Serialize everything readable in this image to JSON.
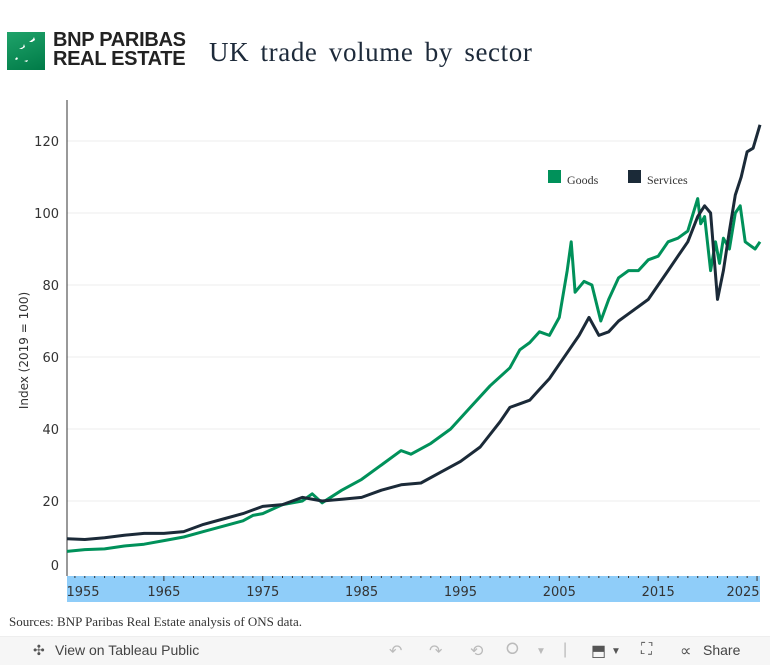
{
  "header": {
    "brand_line1": "BNP PARIBAS",
    "brand_line2": "REAL ESTATE",
    "logo_icon": "bnp-stars-logo",
    "title": "UK trade volume by sector"
  },
  "colors": {
    "goods": "#00915a",
    "services": "#1b2a38",
    "xaxis_band": "#8fcdf9",
    "brand": "#00915a"
  },
  "footer": {
    "sources": "Sources: BNP Paribas Real Estate analysis of ONS data."
  },
  "toolbar": {
    "view_on_tableau": "View on Tableau Public",
    "undo_icon": "undo-icon",
    "redo_icon": "redo-icon",
    "revert_icon": "revert-icon",
    "refresh_icon": "refresh-icon",
    "download_icon": "download-icon",
    "fullscreen_icon": "fullscreen-icon",
    "share_label": "Share"
  },
  "chart_data": {
    "type": "line",
    "title": "UK trade volume by sector",
    "xlabel": "",
    "ylabel": "Index (2019 = 100)",
    "xlim": [
      1955.2,
      2025.3
    ],
    "ylim": [
      0,
      131
    ],
    "yticks": [
      0,
      20,
      40,
      60,
      80,
      100,
      120
    ],
    "xticks": [
      1955,
      1965,
      1975,
      1985,
      1995,
      2005,
      2015,
      2025
    ],
    "grid": true,
    "legend": "top-right",
    "series": [
      {
        "name": "Goods",
        "x": [
          1955.2,
          1957,
          1959,
          1961,
          1963,
          1965,
          1967,
          1969,
          1971,
          1973,
          1974,
          1975,
          1977,
          1979,
          1980,
          1981,
          1983,
          1985,
          1987,
          1989,
          1990,
          1992,
          1994,
          1996,
          1998,
          2000,
          2001,
          2002,
          2003,
          2004,
          2005,
          2005.8,
          2006.2,
          2006.6,
          2007.5,
          2008.3,
          2009.2,
          2010,
          2011,
          2012,
          2013,
          2014,
          2015,
          2016,
          2017,
          2018,
          2019,
          2019.3,
          2019.7,
          2020.3,
          2020.8,
          2021.2,
          2021.6,
          2022.2,
          2022.8,
          2023.3,
          2023.8,
          2024.3,
          2024.8,
          2025.3
        ],
        "values": [
          6,
          6.5,
          6.7,
          7.5,
          8,
          9,
          10,
          11.5,
          13,
          14.5,
          16,
          16.5,
          19,
          20,
          22,
          19.5,
          23,
          26,
          30,
          34,
          33,
          36,
          40,
          46,
          52,
          57,
          62,
          64,
          67,
          66,
          71,
          84,
          92,
          78,
          81,
          80,
          70,
          76,
          82,
          84,
          84,
          87,
          88,
          92,
          93,
          95,
          104,
          97,
          99,
          84,
          92,
          86,
          93,
          90,
          100,
          102,
          92,
          91,
          90,
          92
        ]
      },
      {
        "name": "Services",
        "x": [
          1955.2,
          1957,
          1959,
          1961,
          1963,
          1965,
          1967,
          1969,
          1971,
          1973,
          1975,
          1977,
          1979,
          1981,
          1983,
          1985,
          1987,
          1989,
          1991,
          1993,
          1995,
          1997,
          1999,
          2000,
          2001,
          2002,
          2003,
          2004,
          2005,
          2006,
          2007,
          2008,
          2009,
          2010,
          2011,
          2012,
          2013,
          2014,
          2015,
          2016,
          2017,
          2018,
          2019,
          2019.7,
          2020.3,
          2021,
          2021.6,
          2022.2,
          2022.8,
          2023.4,
          2024,
          2024.6,
          2025.3
        ],
        "values": [
          9.5,
          9.3,
          9.8,
          10.5,
          11,
          11,
          11.5,
          13.5,
          15,
          16.5,
          18.5,
          19,
          21,
          20,
          20.5,
          21,
          23,
          24.5,
          25,
          28,
          31,
          35,
          42,
          46,
          47,
          48,
          51,
          54,
          58,
          62,
          66,
          71,
          66,
          67,
          70,
          72,
          74,
          76,
          80,
          84,
          88,
          92,
          99,
          102,
          100,
          76,
          84,
          95,
          105,
          110,
          117,
          118,
          124.5
        ]
      }
    ]
  }
}
